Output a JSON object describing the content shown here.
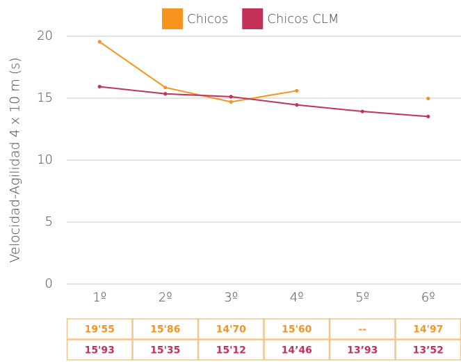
{
  "chart_data": {
    "type": "line",
    "y_axis_label": "Velocidad-Agilidad 4 x 10 m (s)",
    "categories": [
      "1º",
      "2º",
      "3º",
      "4º",
      "5º",
      "6º"
    ],
    "series": [
      {
        "name": "Chicos",
        "color": "#f7941d",
        "values": [
          19.55,
          15.86,
          14.7,
          15.6,
          null,
          14.97
        ],
        "value_labels": [
          "19'55",
          "15'86",
          "14'70",
          "15'60",
          "--",
          "14'97"
        ]
      },
      {
        "name": "Chicos CLM",
        "color": "#c43158",
        "values": [
          15.93,
          15.35,
          15.12,
          14.46,
          13.93,
          13.52
        ],
        "value_labels": [
          "15'93",
          "15'35",
          "15'12",
          "14’46",
          "13’93",
          "13’52"
        ]
      }
    ],
    "ylim": [
      0,
      20
    ],
    "yticks": [
      0,
      5,
      10,
      15,
      20
    ],
    "grid": true
  }
}
